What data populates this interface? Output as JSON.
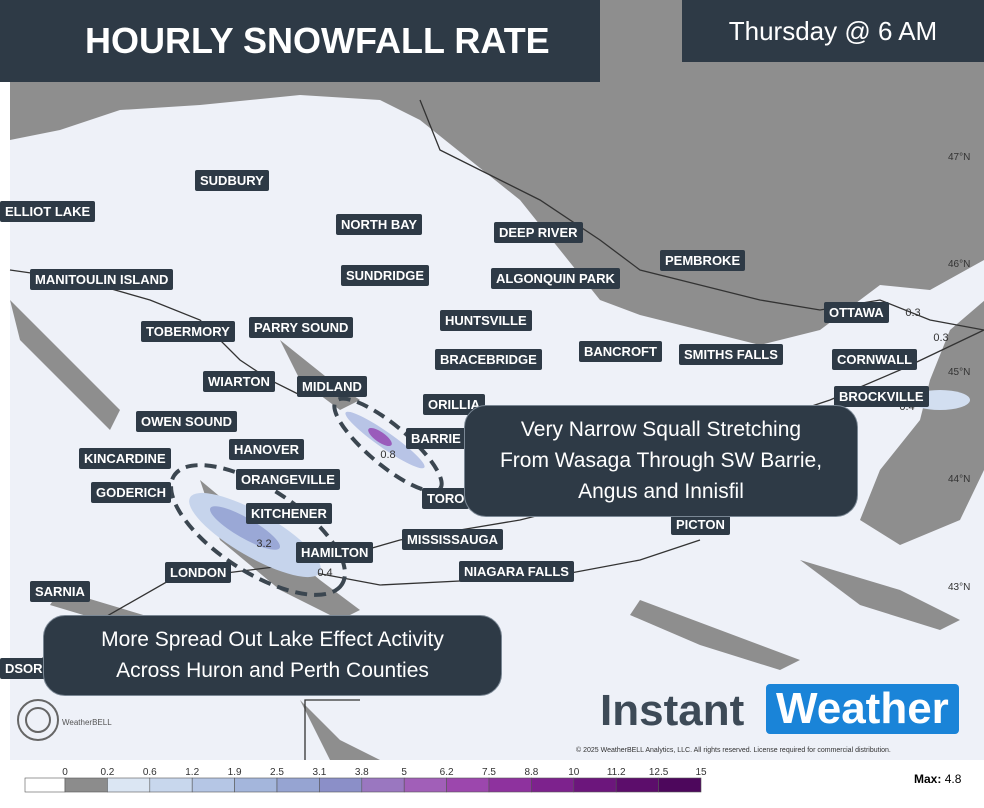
{
  "header": {
    "title": "HOURLY SNOWFALL RATE",
    "time": "Thursday @ 6 AM"
  },
  "map": {
    "cities": [
      "SUDBURY",
      "ELLIOT LAKE",
      "NORTH BAY",
      "DEEP RIVER",
      "MANITOULIN ISLAND",
      "SUNDRIDGE",
      "ALGONQUIN PARK",
      "PEMBROKE",
      "HUNTSVILLE",
      "OTTAWA",
      "TOBERMORY",
      "PARRY SOUND",
      "BANCROFT",
      "SMITHS FALLS",
      "BRACEBRIDGE",
      "CORNWALL",
      "WIARTON",
      "MIDLAND",
      "ORILLIA",
      "BROCKVILLE",
      "OWEN SOUND",
      "BARRIE",
      "HANOVER",
      "KINCARDINE",
      "ORANGEVILLE",
      "GODERICH",
      "TORO",
      "KITCHENER",
      "PICTON",
      "MISSISSAUGA",
      "HAMILTON",
      "LONDON",
      "NIAGARA FALLS",
      "SARNIA",
      "DSOR"
    ],
    "values": [
      0.8,
      3.2,
      0.4,
      0.3,
      0.3,
      0.4
    ],
    "latitudes": [
      "47°N",
      "46°N",
      "45°N",
      "44°N",
      "43°N"
    ]
  },
  "callouts": [
    [
      "Very Narrow Squall Stretching",
      "From Wasaga Through SW Barrie,",
      "Angus and Innisfil"
    ],
    [
      "More Spread Out Lake Effect Activity",
      "Across Huron and Perth Counties"
    ]
  ],
  "branding": {
    "logo_left": "Instant",
    "logo_right": "Weather",
    "source": "WeatherBELL",
    "copyright": "© 2025 WeatherBELL Analytics, LLC. All rights reserved. License required for commercial distribution."
  },
  "legend": {
    "ticks": [
      0,
      0.2,
      0.6,
      1.2,
      1.9,
      2.5,
      3.1,
      3.8,
      5,
      6.2,
      7.5,
      8.8,
      10,
      11.2,
      12.5,
      15
    ],
    "colors": [
      "#ffffff",
      "#8c8c8c",
      "#dbe6f3",
      "#c8d7ed",
      "#b5c6e5",
      "#a4b6dc",
      "#96a4d2",
      "#8b8fc8",
      "#9a77c0",
      "#a15fb8",
      "#9c47ad",
      "#8e329e",
      "#7d228d",
      "#6c167c",
      "#5c0d6b",
      "#4d075c"
    ],
    "max_label": "Max:",
    "max_value": 4.8
  }
}
